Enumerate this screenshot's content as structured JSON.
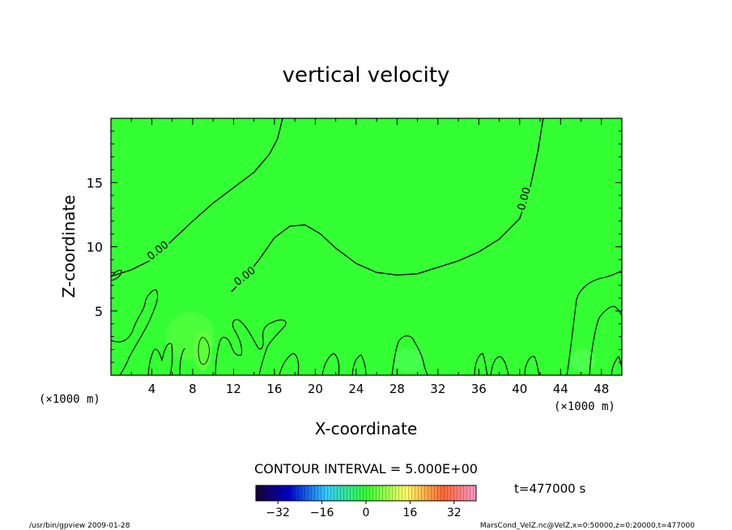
{
  "chart_data": {
    "type": "heatmap",
    "title": "vertical velocity",
    "xlabel": "X-coordinate",
    "ylabel": "Z-coordinate",
    "x_unit": "(×1000 m)",
    "z_unit": "(×1000 m)",
    "xlim": [
      0,
      50
    ],
    "ylim": [
      0,
      20
    ],
    "x_ticks": [
      4,
      8,
      12,
      16,
      20,
      24,
      28,
      32,
      36,
      40,
      44,
      48
    ],
    "y_ticks": [
      5,
      10,
      15
    ],
    "contour_interval_label": "CONTOUR INTERVAL = 5.000E+00",
    "contour_labels": [
      "0.00",
      "0.00",
      "0.00"
    ],
    "time_label": "t=477000 s",
    "colorbar": {
      "min": -40,
      "max": 40,
      "ticks": [
        -32,
        -16,
        0,
        16,
        32
      ]
    },
    "field_color": "#33ff33",
    "zero_contour": [
      [
        0,
        7.7
      ],
      [
        2,
        8.2
      ],
      [
        4,
        9.0
      ],
      [
        6,
        10.5
      ],
      [
        8,
        12.0
      ],
      [
        10,
        13.4
      ],
      [
        12,
        14.6
      ],
      [
        14,
        15.8
      ],
      [
        15.5,
        17.2
      ],
      [
        16.3,
        18.4
      ],
      [
        16.8,
        20
      ]
    ],
    "zero_contour_2": [
      [
        11.8,
        6.5
      ],
      [
        13,
        7.5
      ],
      [
        14.5,
        9.0
      ],
      [
        16,
        10.7
      ],
      [
        17.5,
        11.6
      ],
      [
        19,
        11.7
      ],
      [
        20.5,
        11.0
      ],
      [
        22,
        9.9
      ],
      [
        24,
        8.7
      ],
      [
        26,
        8.0
      ],
      [
        28,
        7.8
      ],
      [
        30,
        7.9
      ],
      [
        32,
        8.4
      ],
      [
        34,
        8.9
      ],
      [
        36,
        9.6
      ],
      [
        38,
        10.6
      ],
      [
        40,
        12.2
      ],
      [
        41,
        14.5
      ],
      [
        41.8,
        17.5
      ],
      [
        42.3,
        20
      ]
    ]
  },
  "footer": {
    "left": "/usr/bin/gpview   2009-01-28",
    "right": "MarsCond_VelZ.nc@VelZ,x=0:50000,z=0:20000,t=477000"
  }
}
